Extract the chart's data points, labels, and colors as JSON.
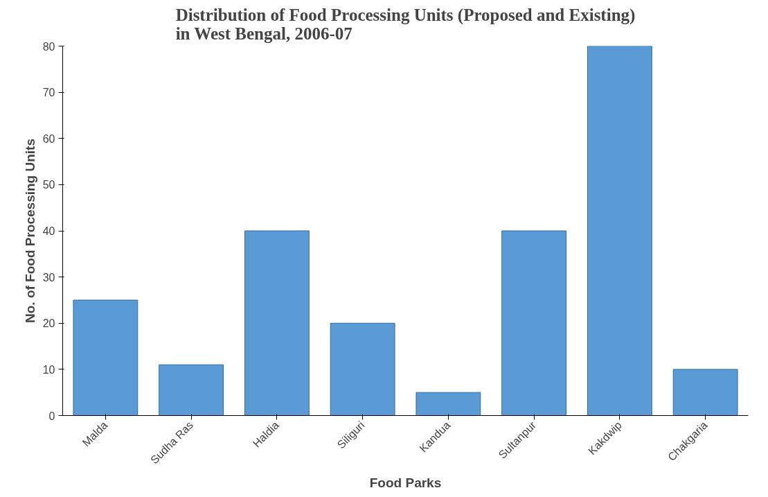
{
  "chart_data": {
    "type": "bar",
    "title": "Distribution of Food Processing Units (Proposed and Existing)\nin West Bengal, 2006-07",
    "xlabel": "Food Parks",
    "ylabel": "No. of Food Processing Units",
    "categories": [
      "Malda",
      "Sudha Ras",
      "Haldia",
      "Siliguri",
      "Kandua",
      "Sultanpur",
      "Kakdwip",
      "Chakgaria"
    ],
    "values": [
      25,
      11,
      40,
      20,
      5,
      40,
      80,
      10
    ],
    "color": "#5b9bd5",
    "ylim": [
      0,
      80
    ],
    "yticks": [
      0,
      10,
      20,
      30,
      40,
      50,
      60,
      70,
      80
    ],
    "grid": false
  }
}
